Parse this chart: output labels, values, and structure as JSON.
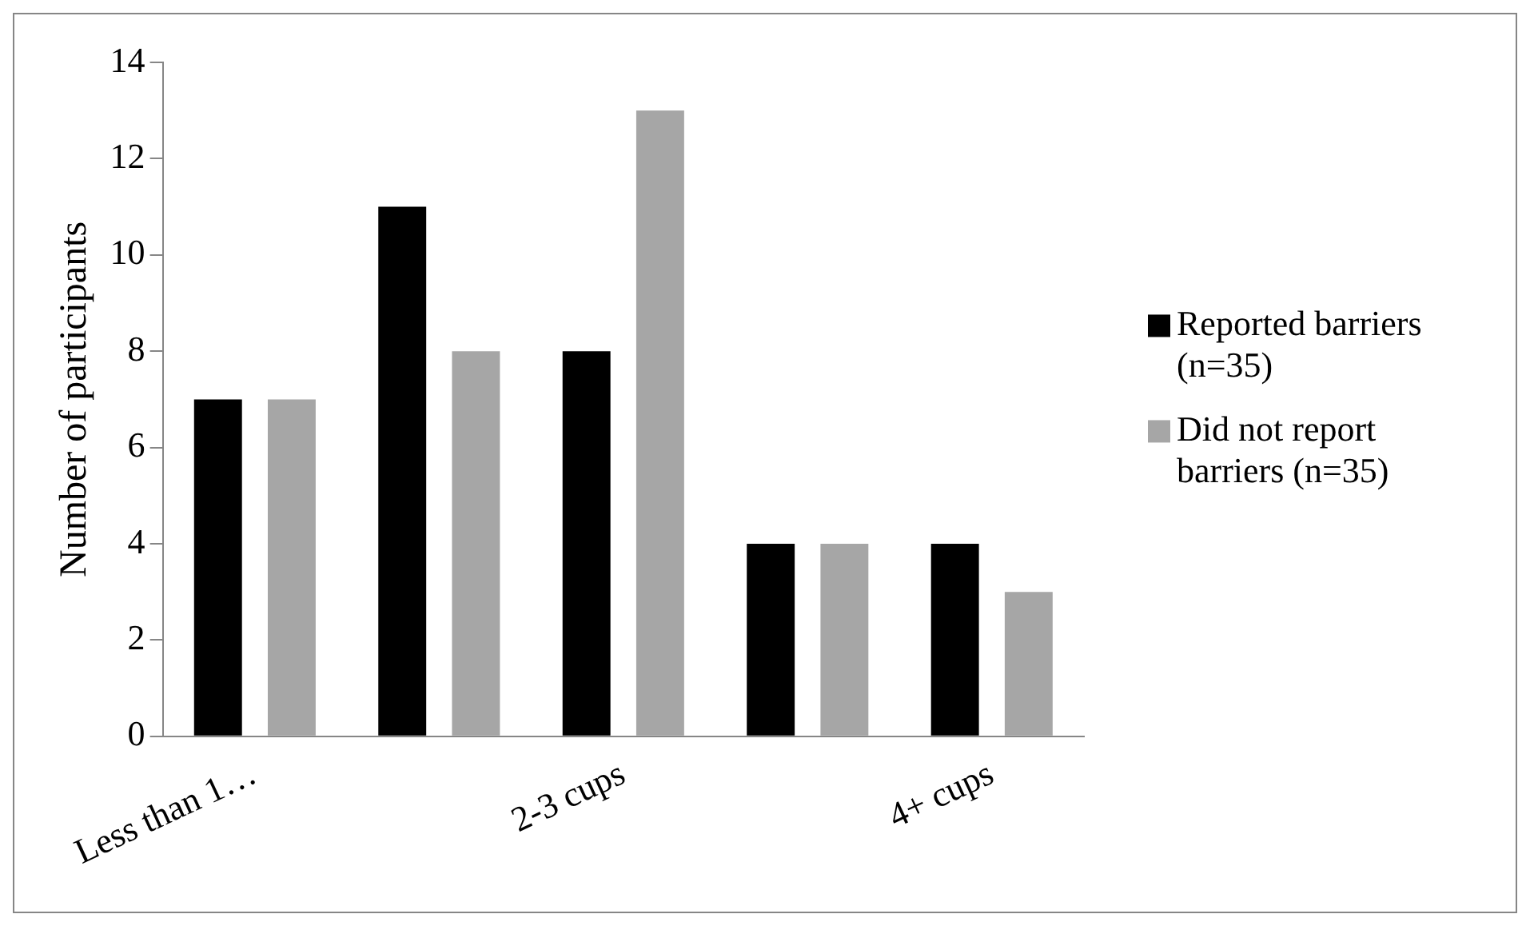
{
  "chart_data": {
    "type": "bar",
    "ylabel": "Number of participants",
    "categories": [
      "Less than 1…",
      null,
      "2-3 cups",
      null,
      "4+ cups"
    ],
    "series": [
      {
        "name": "Reported barriers (n=35)",
        "color": "#000000",
        "values": [
          7,
          11,
          8,
          4,
          4
        ]
      },
      {
        "name": "Did not report barriers (n=35)",
        "color": "#a6a6a6",
        "values": [
          7,
          8,
          13,
          4,
          3
        ]
      }
    ],
    "ylim": [
      0,
      14
    ],
    "yticks": [
      0,
      2,
      4,
      6,
      8,
      10,
      12,
      14
    ],
    "grid": false,
    "legend": "right"
  }
}
